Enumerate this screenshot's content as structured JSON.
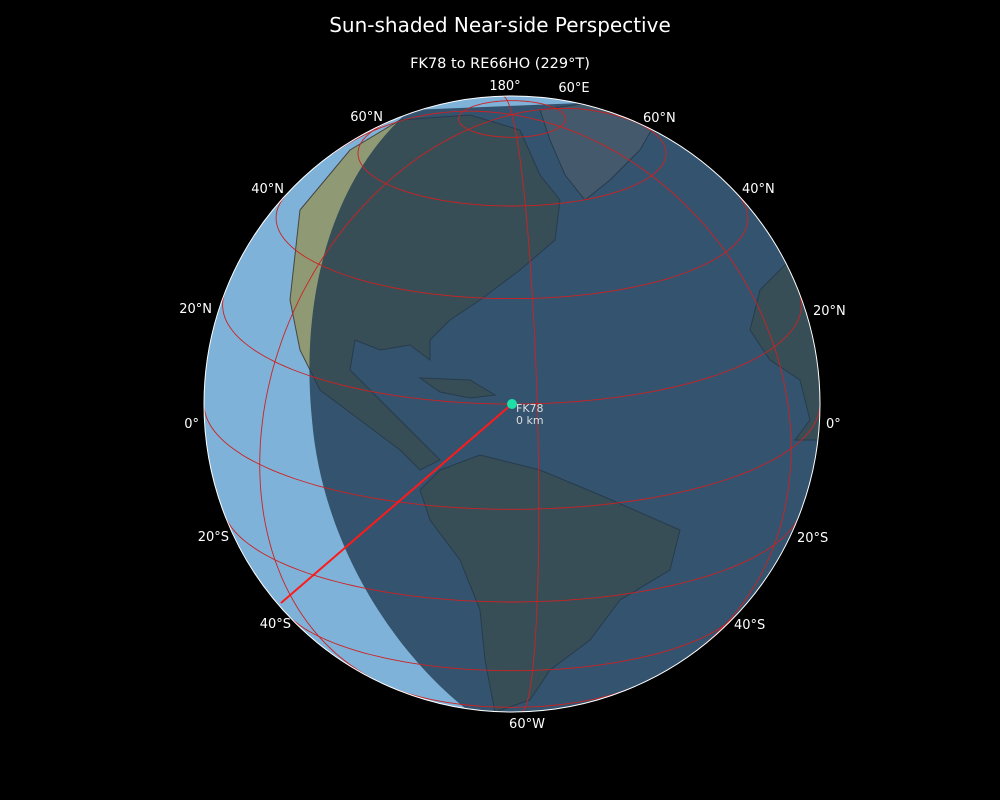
{
  "title": "Sun-shaded Near-side Perspective",
  "subtitle": "FK78 to RE66HO (229°T)",
  "map": {
    "projection": "near-side perspective",
    "center": {
      "lon": -65,
      "lat": 20
    },
    "graticule_color": "#cc2222",
    "day_ocean_color": "#7fb2d8",
    "night_shade_color": "#2b4459",
    "meridian_labels": [
      "180°",
      "60°E",
      "60°W"
    ],
    "lat_labels_left": [
      "60°N",
      "40°N",
      "20°N",
      "0°",
      "20°S",
      "40°S"
    ],
    "lat_labels_right": [
      "60°N",
      "40°N",
      "20°N",
      "0°",
      "20°S",
      "40°S"
    ]
  },
  "station": {
    "name": "FK78",
    "distance": "0 km",
    "color": "#1de0a8"
  },
  "path": {
    "from": "FK78",
    "to": "RE66HO",
    "bearing": "229°T",
    "color": "#ff1a1a"
  }
}
